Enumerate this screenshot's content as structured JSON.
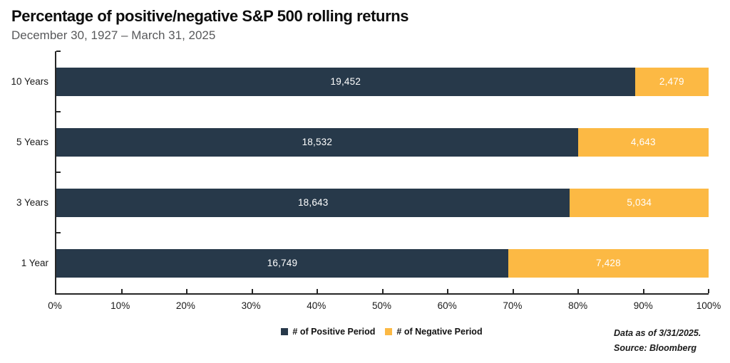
{
  "header": {
    "title": "Percentage of positive/negative S&P 500 rolling returns",
    "subtitle": "December 30, 1927 – March 31, 2025"
  },
  "chart_data": {
    "type": "bar",
    "orientation": "horizontal",
    "stacked": true,
    "title": "Percentage of positive/negative S&P 500 rolling returns",
    "subtitle": "December 30, 1927 – March 31, 2025",
    "categories": [
      "10 Years",
      "5 Years",
      "3 Years",
      "1 Year"
    ],
    "series": [
      {
        "name": "# of Positive Period",
        "color": "#27394a",
        "values": [
          19452,
          18532,
          18643,
          16749
        ],
        "labels": [
          "19,452",
          "18,532",
          "18,643",
          "16,749"
        ]
      },
      {
        "name": "# of Negative Period",
        "color": "#fcb944",
        "values": [
          2479,
          4643,
          5034,
          7428
        ],
        "labels": [
          "2,479",
          "4,643",
          "5,034",
          "7,428"
        ]
      }
    ],
    "x_axis": {
      "min": 0,
      "max": 100,
      "tick_labels": [
        "0%",
        "10%",
        "20%",
        "30%",
        "40%",
        "50%",
        "60%",
        "70%",
        "80%",
        "90%",
        "100%"
      ]
    },
    "legend_position": "bottom-center",
    "grid": false,
    "axis_color": "#262626"
  },
  "footnote": {
    "line1": "Data as of 3/31/2025.",
    "line2": "Source: Bloomberg"
  }
}
